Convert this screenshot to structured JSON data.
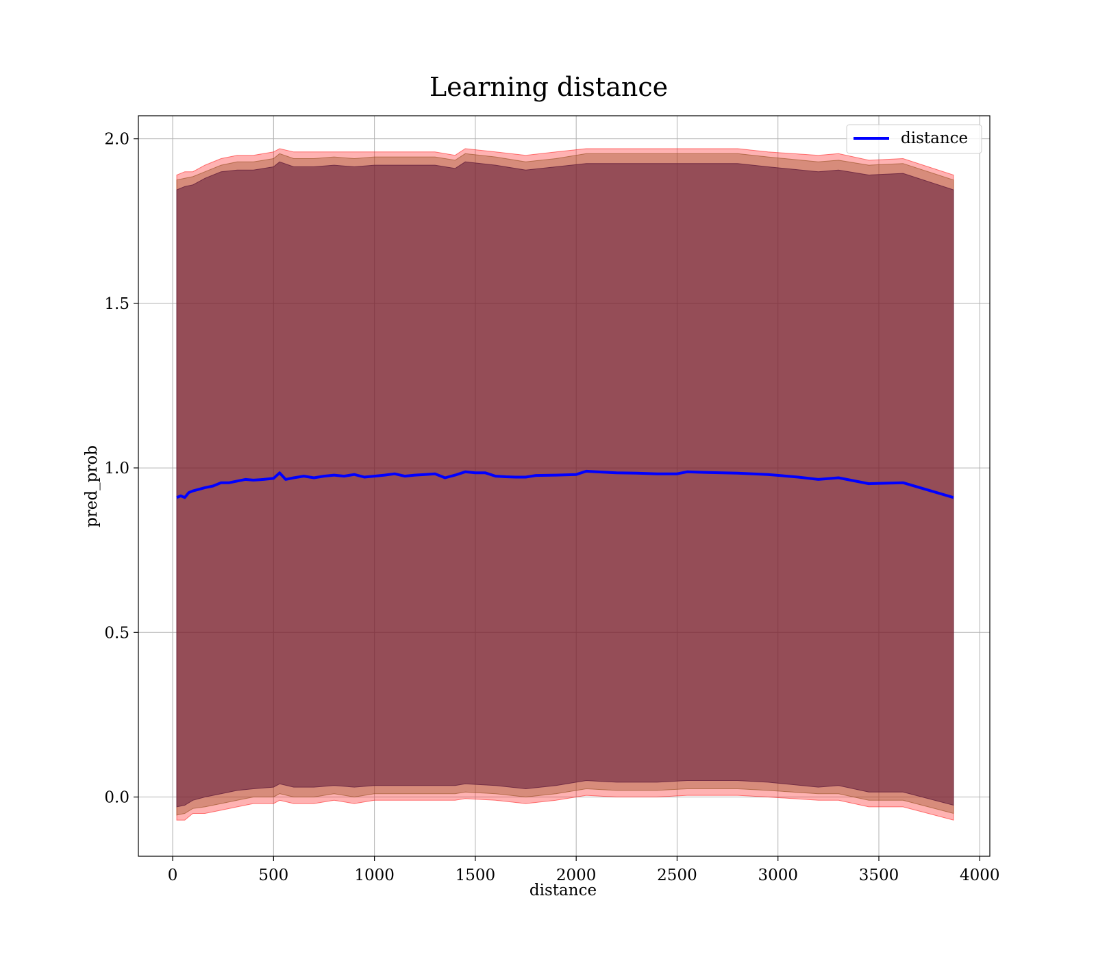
{
  "chart_data": {
    "type": "line",
    "title": "Learning distance",
    "xlabel": "distance",
    "ylabel": "pred_prob",
    "xlim": [
      -170,
      4050
    ],
    "ylim": [
      -0.18,
      2.07
    ],
    "xticks": [
      0,
      500,
      1000,
      1500,
      2000,
      2500,
      3000,
      3500,
      4000
    ],
    "yticks": [
      0.0,
      0.5,
      1.0,
      1.5,
      2.0
    ],
    "xtick_labels": [
      "0",
      "500",
      "1000",
      "1500",
      "2000",
      "2500",
      "3000",
      "3500",
      "4000"
    ],
    "ytick_labels": [
      "0.0",
      "0.5",
      "1.0",
      "1.5",
      "2.0"
    ],
    "grid": true,
    "legend_position": "top-right",
    "legend": [
      "distance"
    ],
    "series": [
      {
        "name": "distance",
        "color": "#0000ff",
        "x": [
          20,
          40,
          60,
          80,
          100,
          130,
          160,
          200,
          240,
          280,
          320,
          360,
          400,
          450,
          500,
          530,
          560,
          600,
          650,
          700,
          750,
          800,
          850,
          900,
          950,
          1000,
          1050,
          1100,
          1150,
          1200,
          1250,
          1300,
          1350,
          1400,
          1450,
          1500,
          1550,
          1600,
          1650,
          1700,
          1750,
          1800,
          1900,
          2000,
          2050,
          2100,
          2200,
          2300,
          2400,
          2500,
          2550,
          2650,
          2800,
          2950,
          3100,
          3200,
          3300,
          3450,
          3620,
          3870
        ],
        "values": [
          0.91,
          0.915,
          0.91,
          0.925,
          0.93,
          0.935,
          0.94,
          0.945,
          0.955,
          0.955,
          0.96,
          0.965,
          0.963,
          0.965,
          0.968,
          0.985,
          0.965,
          0.97,
          0.975,
          0.97,
          0.975,
          0.978,
          0.975,
          0.98,
          0.972,
          0.975,
          0.978,
          0.982,
          0.975,
          0.978,
          0.98,
          0.982,
          0.97,
          0.978,
          0.988,
          0.985,
          0.985,
          0.975,
          0.973,
          0.972,
          0.972,
          0.977,
          0.978,
          0.98,
          0.99,
          0.988,
          0.985,
          0.984,
          0.982,
          0.982,
          0.988,
          0.986,
          0.984,
          0.98,
          0.972,
          0.965,
          0.97,
          0.952,
          0.955,
          0.91
        ]
      }
    ],
    "bands": [
      {
        "color": "#ff0000",
        "opacity": 0.3,
        "x": [
          20,
          60,
          100,
          160,
          240,
          320,
          400,
          500,
          530,
          600,
          700,
          800,
          900,
          1000,
          1100,
          1200,
          1300,
          1400,
          1450,
          1600,
          1750,
          1900,
          2050,
          2200,
          2400,
          2550,
          2800,
          2950,
          3200,
          3300,
          3450,
          3620,
          3870
        ],
        "upper": [
          1.89,
          1.9,
          1.9,
          1.92,
          1.94,
          1.95,
          1.95,
          1.96,
          1.97,
          1.96,
          1.96,
          1.96,
          1.96,
          1.96,
          1.96,
          1.96,
          1.96,
          1.95,
          1.97,
          1.96,
          1.95,
          1.96,
          1.97,
          1.97,
          1.97,
          1.97,
          1.97,
          1.96,
          1.95,
          1.955,
          1.935,
          1.94,
          1.89
        ],
        "lower": [
          -0.07,
          -0.07,
          -0.05,
          -0.05,
          -0.04,
          -0.03,
          -0.02,
          -0.02,
          -0.01,
          -0.02,
          -0.02,
          -0.01,
          -0.02,
          -0.01,
          -0.01,
          -0.01,
          -0.01,
          -0.01,
          -0.005,
          -0.01,
          -0.02,
          -0.01,
          0.005,
          0.0,
          0.0,
          0.005,
          0.005,
          0.0,
          -0.01,
          -0.01,
          -0.03,
          -0.03,
          -0.07
        ]
      },
      {
        "color": "#8b4513",
        "opacity": 0.35,
        "x": [
          20,
          60,
          100,
          160,
          240,
          320,
          400,
          500,
          530,
          600,
          700,
          800,
          900,
          1000,
          1100,
          1200,
          1300,
          1400,
          1450,
          1600,
          1750,
          1900,
          2050,
          2200,
          2400,
          2550,
          2800,
          2950,
          3200,
          3300,
          3450,
          3620,
          3870
        ],
        "upper": [
          1.875,
          1.88,
          1.885,
          1.9,
          1.92,
          1.93,
          1.93,
          1.94,
          1.955,
          1.94,
          1.94,
          1.945,
          1.94,
          1.945,
          1.945,
          1.945,
          1.945,
          1.935,
          1.955,
          1.945,
          1.93,
          1.94,
          1.955,
          1.955,
          1.955,
          1.955,
          1.955,
          1.945,
          1.93,
          1.935,
          1.92,
          1.925,
          1.875
        ],
        "lower": [
          -0.055,
          -0.05,
          -0.035,
          -0.03,
          -0.02,
          -0.01,
          0.0,
          0.0,
          0.01,
          0.0,
          0.0,
          0.01,
          0.0,
          0.01,
          0.01,
          0.01,
          0.01,
          0.01,
          0.015,
          0.01,
          0.0,
          0.01,
          0.025,
          0.02,
          0.02,
          0.025,
          0.025,
          0.02,
          0.01,
          0.01,
          -0.01,
          -0.01,
          -0.05
        ]
      },
      {
        "color": "#5e1a3a",
        "opacity": 0.55,
        "x": [
          20,
          60,
          100,
          160,
          240,
          320,
          400,
          500,
          530,
          600,
          700,
          800,
          900,
          1000,
          1100,
          1200,
          1300,
          1400,
          1450,
          1600,
          1750,
          1900,
          2050,
          2200,
          2400,
          2550,
          2800,
          2950,
          3200,
          3300,
          3450,
          3620,
          3870
        ],
        "upper": [
          1.845,
          1.855,
          1.86,
          1.88,
          1.9,
          1.905,
          1.905,
          1.915,
          1.93,
          1.915,
          1.915,
          1.92,
          1.915,
          1.92,
          1.92,
          1.92,
          1.92,
          1.91,
          1.93,
          1.92,
          1.905,
          1.915,
          1.925,
          1.925,
          1.925,
          1.925,
          1.925,
          1.915,
          1.9,
          1.905,
          1.89,
          1.895,
          1.845
        ],
        "lower": [
          -0.03,
          -0.025,
          -0.01,
          0.0,
          0.01,
          0.02,
          0.025,
          0.03,
          0.04,
          0.03,
          0.03,
          0.035,
          0.03,
          0.035,
          0.035,
          0.035,
          0.035,
          0.035,
          0.04,
          0.035,
          0.025,
          0.035,
          0.05,
          0.045,
          0.045,
          0.05,
          0.05,
          0.045,
          0.03,
          0.035,
          0.015,
          0.015,
          -0.025
        ]
      }
    ]
  }
}
